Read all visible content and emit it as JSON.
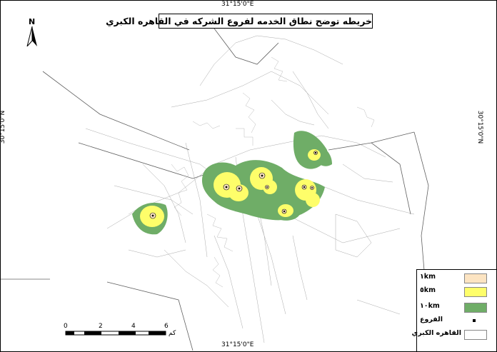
{
  "map": {
    "title": "خريطه توضح نطاق الخدمه لفروع الشركه في القاهره الكبري",
    "graticule": {
      "top": "31°15'0\"E",
      "bottom": "31°15'0\"E",
      "left": "30°15'0\"N",
      "right": "30°15'0\"N"
    },
    "north_arrow": "N",
    "scale": {
      "ticks": [
        "0",
        "2",
        "4",
        "6"
      ],
      "unit": "كم"
    },
    "colors": {
      "buffer_1km": "#fce4c2",
      "buffer_5km": "#fefe6a",
      "buffer_10km": "#6fad67",
      "roads": "#9a9a9a",
      "boundary": "#606060"
    },
    "legend": [
      {
        "label": "١km",
        "symbol": "buffer_1km"
      },
      {
        "label": "٥km",
        "symbol": "buffer_5km"
      },
      {
        "label": "١٠km",
        "symbol": "buffer_10km"
      },
      {
        "label": "الفروع",
        "symbol": "branch-point"
      },
      {
        "label": "القاهره الكبري",
        "symbol": "boundary"
      }
    ]
  }
}
